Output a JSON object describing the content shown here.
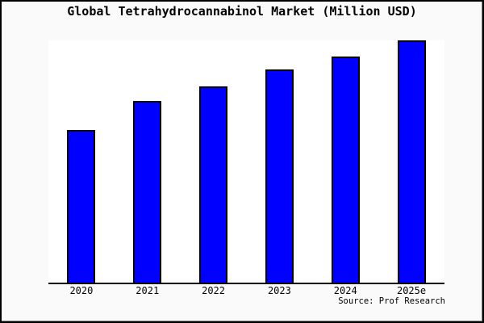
{
  "figure": {
    "title": "Global Tetrahydrocannabinol Market (Million USD)",
    "source": "Source: Prof Research",
    "colors": {
      "figure_bg": "#fafafa",
      "plot_bg": "#ffffff",
      "bar_fill": "#0000ff",
      "bar_outline": "#000000",
      "axis": "#000000",
      "border": "#000000",
      "text": "#000000"
    }
  },
  "chart_data": {
    "type": "bar",
    "title": "Global Tetrahydrocannabinol Market (Million USD)",
    "categories": [
      "2020",
      "2021",
      "2022",
      "2023",
      "2024",
      "2025e"
    ],
    "values": [
      63,
      75,
      81,
      88,
      93.5,
      100
    ],
    "value_units": "relative height, percent of tallest bar (no y-axis tick labels shown)",
    "xlabel": "",
    "ylabel": "",
    "ylim": [
      0,
      100
    ],
    "grid": false,
    "legend": false,
    "annotations": [
      "Source: Prof Research"
    ]
  }
}
